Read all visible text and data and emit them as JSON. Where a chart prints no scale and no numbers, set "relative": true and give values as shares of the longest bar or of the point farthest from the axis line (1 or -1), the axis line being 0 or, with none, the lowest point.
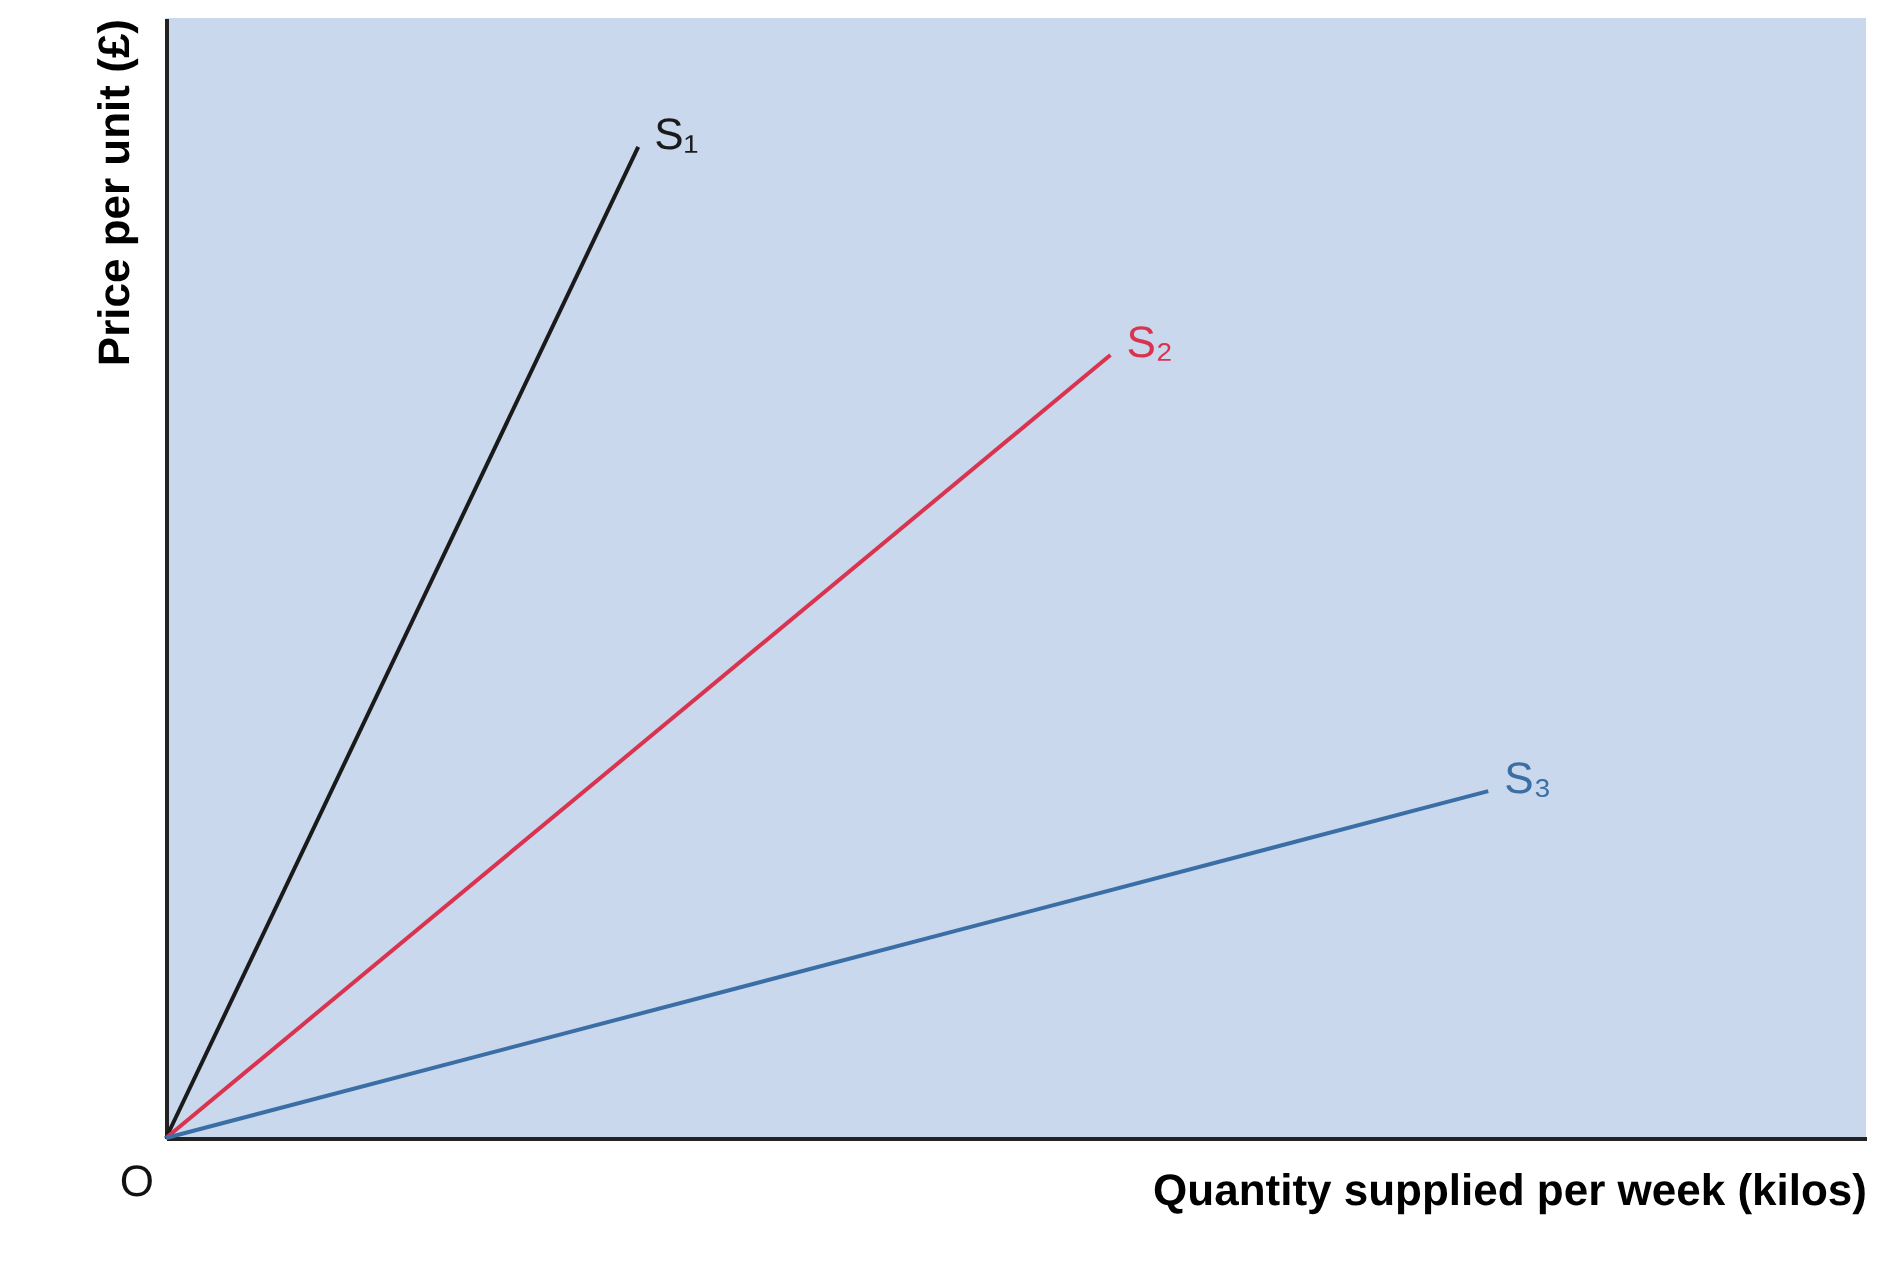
{
  "chart_data": {
    "type": "line",
    "relative": true,
    "xlabel": "Quantity supplied per week (kilos)",
    "ylabel": "Price per unit (£)",
    "annotations": [
      "O"
    ],
    "categories": [
      null,
      null,
      null,
      null,
      null,
      null,
      null,
      null,
      null,
      null,
      null,
      null,
      null,
      null,
      null,
      null,
      null,
      null,
      null
    ],
    "series": [
      {
        "name": "S₁",
        "color": "#1a1a1a",
        "values": [
          0,
          null,
          null,
          null,
          null,
          1,
          null,
          null,
          null,
          null,
          null,
          null,
          null,
          null,
          null,
          null,
          null,
          null,
          null
        ]
      },
      {
        "name": "S₂",
        "color": "#d9334f",
        "values": [
          0,
          null,
          null,
          null,
          null,
          null,
          null,
          null,
          null,
          null,
          0.79,
          null,
          null,
          null,
          null,
          null,
          null,
          null,
          null
        ]
      },
      {
        "name": "S₃",
        "color": "#3a6ea5",
        "values": [
          0,
          null,
          null,
          null,
          null,
          null,
          null,
          null,
          null,
          null,
          null,
          null,
          null,
          null,
          0.35,
          null,
          null,
          null,
          null
        ]
      }
    ]
  }
}
